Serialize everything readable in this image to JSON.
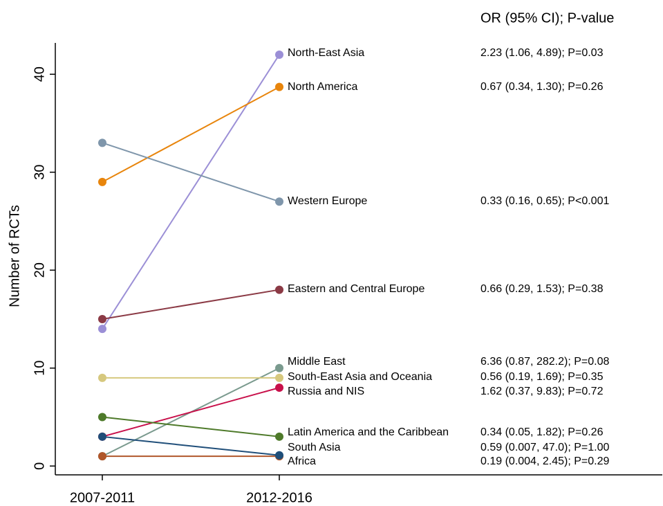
{
  "chart_data": {
    "type": "line",
    "ci_header": "OR (95% CI); P-value",
    "y_label": "Number of RCTs",
    "categories": [
      "2007-2011",
      "2012-2016"
    ],
    "ylim": [
      -0.9,
      43.2
    ],
    "yticks": [
      0,
      10,
      20,
      30,
      40
    ],
    "series": [
      {
        "name": "North-East Asia",
        "color": "#9b8fd6",
        "values": [
          14,
          42
        ],
        "ci": "2.23 (1.06, 4.89); P=0.03"
      },
      {
        "name": "North America",
        "color": "#e8850c",
        "values": [
          29,
          38.7
        ],
        "ci": "0.67 (0.34, 1.30); P=0.26"
      },
      {
        "name": "Western Europe",
        "color": "#7f96ab",
        "values": [
          33,
          27
        ],
        "ci": "0.33 (0.16, 0.65); P<0.001"
      },
      {
        "name": "Eastern and Central Europe",
        "color": "#8b3a45",
        "values": [
          15,
          18
        ],
        "ci": "0.66 (0.29, 1.53); P=0.38"
      },
      {
        "name": "Middle East",
        "color": "#7a9a8e",
        "values": [
          1,
          10
        ],
        "ci": "6.36 (0.87, 282.2); P=0.08"
      },
      {
        "name": "South-East Asia and Oceania",
        "color": "#d6c87e",
        "values": [
          9,
          9
        ],
        "ci": "0.56 (0.19, 1.69); P=0.35"
      },
      {
        "name": "Russia and NIS",
        "color": "#c8104a",
        "values": [
          3,
          8
        ],
        "ci": "1.62 (0.37, 9.83); P=0.72"
      },
      {
        "name": "Latin America and the Caribbean",
        "color": "#4e7a2a",
        "values": [
          5,
          3
        ],
        "ci": "0.34 (0.05, 1.82); P=0.26"
      },
      {
        "name": "South Asia",
        "color": "#b0562a",
        "values": [
          1,
          1
        ],
        "ci": "0.59 (0.007, 47.0); P=1.00"
      },
      {
        "name": "Africa",
        "color": "#1f4e79",
        "values": [
          3,
          1.1
        ],
        "ci": "0.19 (0.004, 2.45); P=0.29"
      }
    ]
  }
}
